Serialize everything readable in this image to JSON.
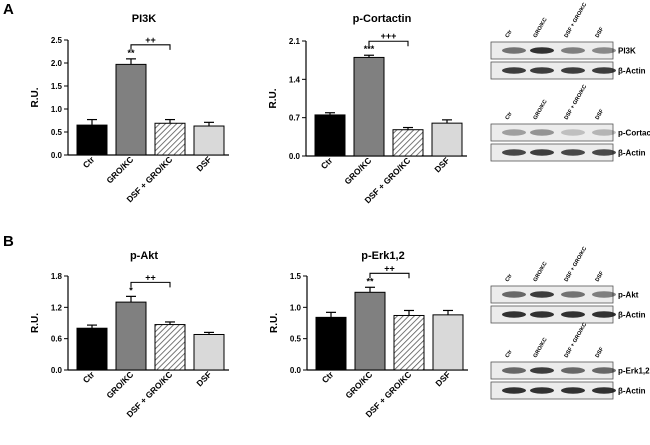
{
  "figure": {
    "panel_labels": [
      "A",
      "B"
    ],
    "categories": [
      "Ctr",
      "GRO/KC",
      "DSF + GRO/KC",
      "DSF"
    ],
    "colors": {
      "bars": [
        "#000000",
        "#808080",
        "#ffffff",
        "#d9d9d9"
      ],
      "hatch": "#555555",
      "axis": "#000000"
    }
  },
  "chart_data": [
    {
      "type": "bar",
      "panel": "A",
      "title": "PI3K",
      "xlabel": "",
      "ylabel": "R.U.",
      "categories": [
        "Ctr",
        "GRO/KC",
        "DSF + GRO/KC",
        "DSF"
      ],
      "values": [
        0.65,
        1.97,
        0.69,
        0.63
      ],
      "errors": [
        0.12,
        0.12,
        0.08,
        0.08
      ],
      "ylim": [
        0,
        2.5
      ],
      "yticks": [
        "0.0",
        "0.5",
        "1.0",
        "1.5",
        "2.0",
        "2.5"
      ],
      "ytick_values": [
        0,
        0.5,
        1.0,
        1.5,
        2.0,
        2.5
      ],
      "significance": {
        "label": "**",
        "index": 1
      },
      "comparison": {
        "label": "++",
        "from": 1,
        "to": 2
      }
    },
    {
      "type": "bar",
      "panel": "A",
      "title": "p-Cortactin",
      "xlabel": "",
      "ylabel": "R.U.",
      "categories": [
        "Ctr",
        "GRO/KC",
        "DSF + GRO/KC",
        "DSF"
      ],
      "values": [
        0.75,
        1.8,
        0.48,
        0.6
      ],
      "errors": [
        0.04,
        0.04,
        0.04,
        0.06
      ],
      "ylim": [
        0,
        2.1
      ],
      "yticks": [
        "0.0",
        "0.7",
        "1.4",
        "2.1"
      ],
      "ytick_values": [
        0,
        0.7,
        1.4,
        2.1
      ],
      "significance": {
        "label": "***",
        "index": 1
      },
      "comparison": {
        "label": "+++",
        "from": 1,
        "to": 2
      }
    },
    {
      "type": "bar",
      "panel": "B",
      "title": "p-Akt",
      "xlabel": "",
      "ylabel": "R.U.",
      "categories": [
        "Ctr",
        "GRO/KC",
        "DSF + GRO/KC",
        "DSF"
      ],
      "values": [
        0.8,
        1.3,
        0.87,
        0.68
      ],
      "errors": [
        0.06,
        0.11,
        0.05,
        0.04
      ],
      "ylim": [
        0,
        1.8
      ],
      "yticks": [
        "0.0",
        "0.6",
        "1.2",
        "1.8"
      ],
      "ytick_values": [
        0,
        0.6,
        1.2,
        1.8
      ],
      "significance": {
        "label": "*",
        "index": 1
      },
      "comparison": {
        "label": "++",
        "from": 1,
        "to": 2
      }
    },
    {
      "type": "bar",
      "panel": "B",
      "title": "p-Erk1,2",
      "xlabel": "",
      "ylabel": "R.U.",
      "categories": [
        "Ctr",
        "GRO/KC",
        "DSF + GRO/KC",
        "DSF"
      ],
      "values": [
        0.84,
        1.24,
        0.87,
        0.88
      ],
      "errors": [
        0.08,
        0.08,
        0.08,
        0.07
      ],
      "ylim": [
        0,
        1.5
      ],
      "yticks": [
        "0.0",
        "0.5",
        "1.0",
        "1.5"
      ],
      "ytick_values": [
        0,
        0.5,
        1.0,
        1.5
      ],
      "significance": {
        "label": "**",
        "index": 1
      },
      "comparison": {
        "label": "++",
        "from": 1,
        "to": 2
      }
    }
  ],
  "blots": [
    {
      "panel": "A",
      "lane_labels": [
        "Ctr",
        "GRO/KC",
        "DSF + GRO/KC",
        "DSF"
      ],
      "rows": [
        "PI3K",
        "β-Actin"
      ]
    },
    {
      "panel": "A",
      "lane_labels": [
        "Ctr",
        "GRO/KC",
        "DSF + GRO/KC",
        "DSF"
      ],
      "rows": [
        "p-Cortactin",
        "β-Actin"
      ]
    },
    {
      "panel": "B",
      "lane_labels": [
        "Ctr",
        "GRO/KC",
        "DSF + GRO/KC",
        "DSF"
      ],
      "rows": [
        "p-Akt",
        "β-Actin"
      ]
    },
    {
      "panel": "B",
      "lane_labels": [
        "Ctr",
        "GRO/KC",
        "DSF + GRO/KC",
        "DSF"
      ],
      "rows": [
        "p-Erk1,2",
        "β-Actin"
      ]
    }
  ]
}
